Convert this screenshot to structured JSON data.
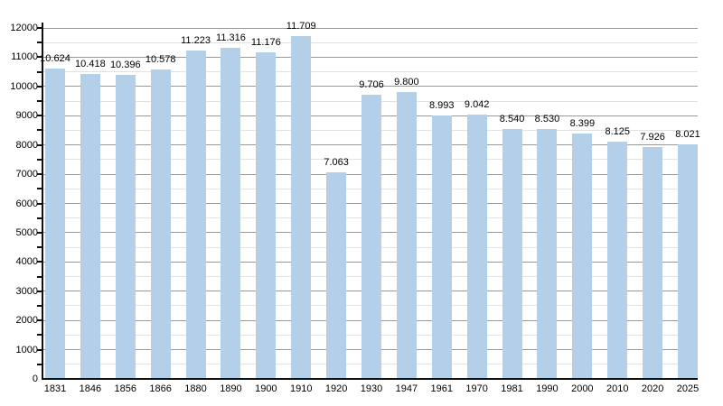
{
  "chart_data": {
    "type": "bar",
    "title": "",
    "xlabel": "",
    "ylabel": "",
    "categories": [
      "1831",
      "1846",
      "1856",
      "1866",
      "1880",
      "1890",
      "1900",
      "1910",
      "1920",
      "1930",
      "1947",
      "1961",
      "1970",
      "1981",
      "1990",
      "2000",
      "2010",
      "2020",
      "2025"
    ],
    "values": [
      10624,
      10418,
      10396,
      10578,
      11223,
      11316,
      11176,
      11709,
      7063,
      9706,
      9800,
      8993,
      9042,
      8540,
      8530,
      8399,
      8125,
      7926,
      8021
    ],
    "value_labels": [
      "10.624",
      "10.418",
      "10.396",
      "10.578",
      "11.223",
      "11.316",
      "11.176",
      "11.709",
      "7.063",
      "9.706",
      "9.800",
      "8.993",
      "9.042",
      "8.540",
      "8.530",
      "8.399",
      "8.125",
      "7.926",
      "8.021"
    ],
    "ylim": [
      0,
      12000
    ],
    "y_ticks": [
      0,
      1000,
      2000,
      3000,
      4000,
      5000,
      6000,
      7000,
      8000,
      9000,
      10000,
      11000,
      12000
    ],
    "y_major_step": 1000,
    "y_minor_step": 500,
    "grid": true,
    "legend": "none",
    "colors": {
      "bar": "#b4cfe8",
      "major_grid": "#999999",
      "minor_grid": "#e2e2e2",
      "axis": "#111111",
      "text": "#000000",
      "background": "#ffffff"
    }
  }
}
